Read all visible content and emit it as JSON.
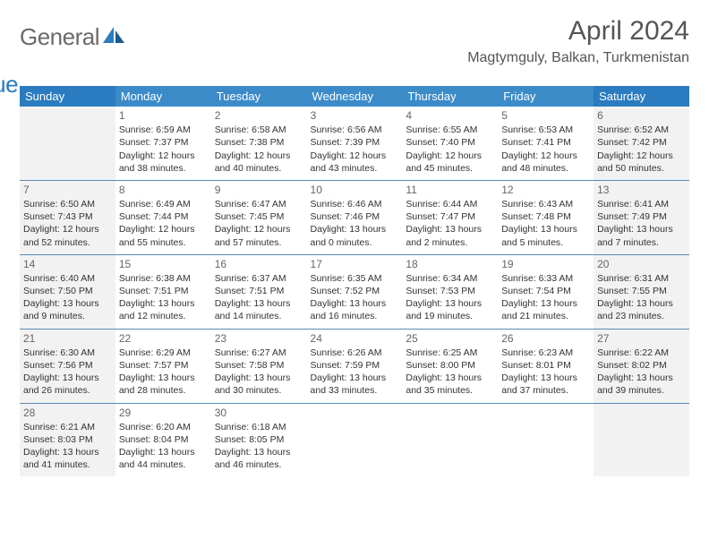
{
  "brand": {
    "word1": "General",
    "word2": "Blue"
  },
  "title": "April 2024",
  "location": "Magtymguly, Balkan, Turkmenistan",
  "colors": {
    "header_weekday": "#3b8bc9",
    "header_weekend": "#2a7bbf",
    "weekend_bg": "#f2f2f2",
    "row_border": "#5a8bb5",
    "title_color": "#555555",
    "text_color": "#333333",
    "logo_gray": "#6a6a6a",
    "logo_blue": "#2a7bbf"
  },
  "weekdays": [
    "Sunday",
    "Monday",
    "Tuesday",
    "Wednesday",
    "Thursday",
    "Friday",
    "Saturday"
  ],
  "weeks": [
    [
      null,
      {
        "n": "1",
        "sr": "6:59 AM",
        "ss": "7:37 PM",
        "dl1": "12 hours",
        "dl2": "and 38 minutes."
      },
      {
        "n": "2",
        "sr": "6:58 AM",
        "ss": "7:38 PM",
        "dl1": "12 hours",
        "dl2": "and 40 minutes."
      },
      {
        "n": "3",
        "sr": "6:56 AM",
        "ss": "7:39 PM",
        "dl1": "12 hours",
        "dl2": "and 43 minutes."
      },
      {
        "n": "4",
        "sr": "6:55 AM",
        "ss": "7:40 PM",
        "dl1": "12 hours",
        "dl2": "and 45 minutes."
      },
      {
        "n": "5",
        "sr": "6:53 AM",
        "ss": "7:41 PM",
        "dl1": "12 hours",
        "dl2": "and 48 minutes."
      },
      {
        "n": "6",
        "sr": "6:52 AM",
        "ss": "7:42 PM",
        "dl1": "12 hours",
        "dl2": "and 50 minutes."
      }
    ],
    [
      {
        "n": "7",
        "sr": "6:50 AM",
        "ss": "7:43 PM",
        "dl1": "12 hours",
        "dl2": "and 52 minutes."
      },
      {
        "n": "8",
        "sr": "6:49 AM",
        "ss": "7:44 PM",
        "dl1": "12 hours",
        "dl2": "and 55 minutes."
      },
      {
        "n": "9",
        "sr": "6:47 AM",
        "ss": "7:45 PM",
        "dl1": "12 hours",
        "dl2": "and 57 minutes."
      },
      {
        "n": "10",
        "sr": "6:46 AM",
        "ss": "7:46 PM",
        "dl1": "13 hours",
        "dl2": "and 0 minutes."
      },
      {
        "n": "11",
        "sr": "6:44 AM",
        "ss": "7:47 PM",
        "dl1": "13 hours",
        "dl2": "and 2 minutes."
      },
      {
        "n": "12",
        "sr": "6:43 AM",
        "ss": "7:48 PM",
        "dl1": "13 hours",
        "dl2": "and 5 minutes."
      },
      {
        "n": "13",
        "sr": "6:41 AM",
        "ss": "7:49 PM",
        "dl1": "13 hours",
        "dl2": "and 7 minutes."
      }
    ],
    [
      {
        "n": "14",
        "sr": "6:40 AM",
        "ss": "7:50 PM",
        "dl1": "13 hours",
        "dl2": "and 9 minutes."
      },
      {
        "n": "15",
        "sr": "6:38 AM",
        "ss": "7:51 PM",
        "dl1": "13 hours",
        "dl2": "and 12 minutes."
      },
      {
        "n": "16",
        "sr": "6:37 AM",
        "ss": "7:51 PM",
        "dl1": "13 hours",
        "dl2": "and 14 minutes."
      },
      {
        "n": "17",
        "sr": "6:35 AM",
        "ss": "7:52 PM",
        "dl1": "13 hours",
        "dl2": "and 16 minutes."
      },
      {
        "n": "18",
        "sr": "6:34 AM",
        "ss": "7:53 PM",
        "dl1": "13 hours",
        "dl2": "and 19 minutes."
      },
      {
        "n": "19",
        "sr": "6:33 AM",
        "ss": "7:54 PM",
        "dl1": "13 hours",
        "dl2": "and 21 minutes."
      },
      {
        "n": "20",
        "sr": "6:31 AM",
        "ss": "7:55 PM",
        "dl1": "13 hours",
        "dl2": "and 23 minutes."
      }
    ],
    [
      {
        "n": "21",
        "sr": "6:30 AM",
        "ss": "7:56 PM",
        "dl1": "13 hours",
        "dl2": "and 26 minutes."
      },
      {
        "n": "22",
        "sr": "6:29 AM",
        "ss": "7:57 PM",
        "dl1": "13 hours",
        "dl2": "and 28 minutes."
      },
      {
        "n": "23",
        "sr": "6:27 AM",
        "ss": "7:58 PM",
        "dl1": "13 hours",
        "dl2": "and 30 minutes."
      },
      {
        "n": "24",
        "sr": "6:26 AM",
        "ss": "7:59 PM",
        "dl1": "13 hours",
        "dl2": "and 33 minutes."
      },
      {
        "n": "25",
        "sr": "6:25 AM",
        "ss": "8:00 PM",
        "dl1": "13 hours",
        "dl2": "and 35 minutes."
      },
      {
        "n": "26",
        "sr": "6:23 AM",
        "ss": "8:01 PM",
        "dl1": "13 hours",
        "dl2": "and 37 minutes."
      },
      {
        "n": "27",
        "sr": "6:22 AM",
        "ss": "8:02 PM",
        "dl1": "13 hours",
        "dl2": "and 39 minutes."
      }
    ],
    [
      {
        "n": "28",
        "sr": "6:21 AM",
        "ss": "8:03 PM",
        "dl1": "13 hours",
        "dl2": "and 41 minutes."
      },
      {
        "n": "29",
        "sr": "6:20 AM",
        "ss": "8:04 PM",
        "dl1": "13 hours",
        "dl2": "and 44 minutes."
      },
      {
        "n": "30",
        "sr": "6:18 AM",
        "ss": "8:05 PM",
        "dl1": "13 hours",
        "dl2": "and 46 minutes."
      },
      null,
      null,
      null,
      null
    ]
  ],
  "labels": {
    "sunrise": "Sunrise:",
    "sunset": "Sunset:",
    "daylight": "Daylight:"
  }
}
